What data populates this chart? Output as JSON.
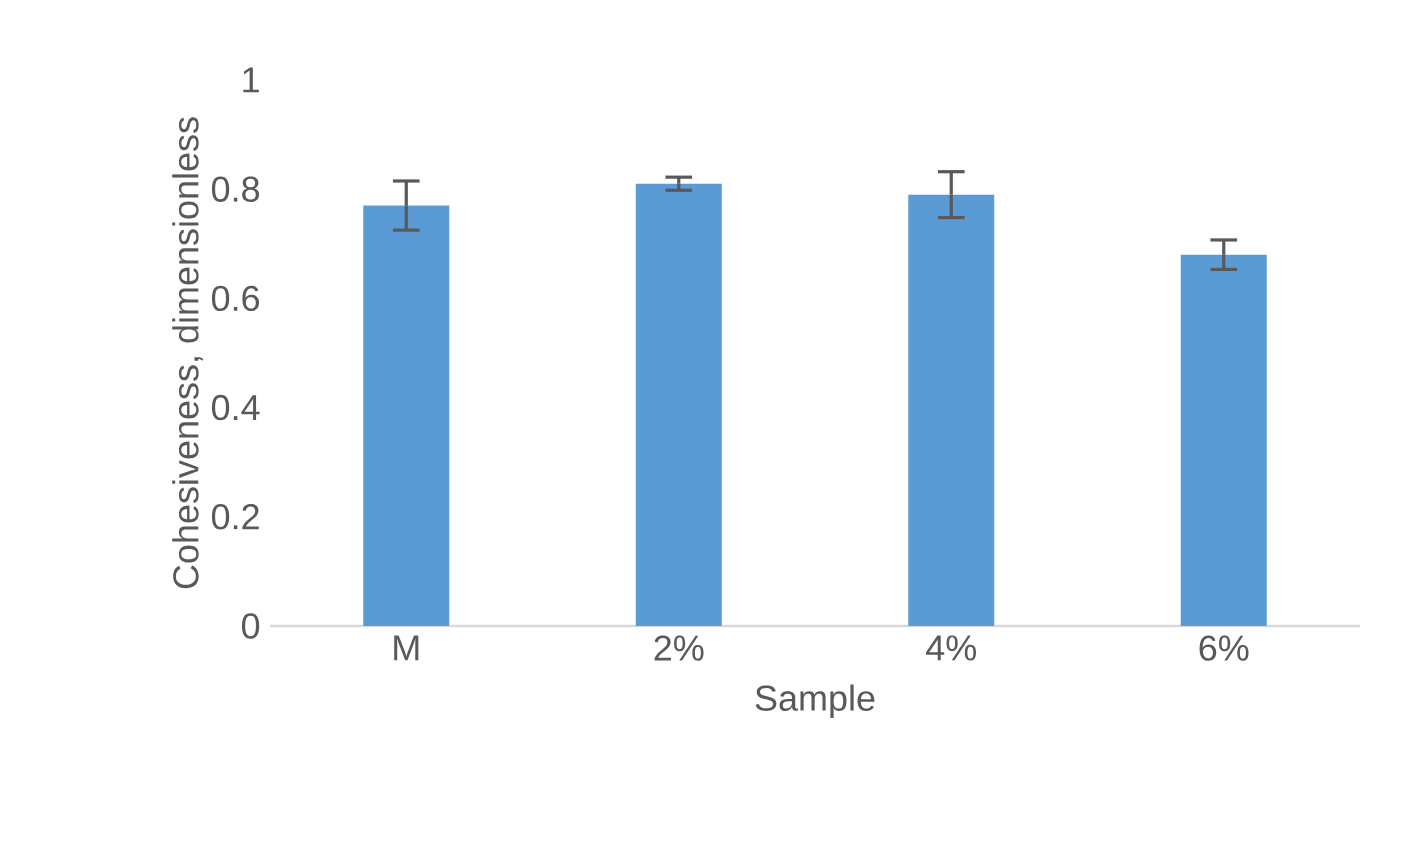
{
  "chart_data": {
    "type": "bar",
    "xlabel": "Sample",
    "ylabel": "Cohesiveness, dimensionless",
    "categories": [
      "M",
      "2%",
      "4%",
      "6%"
    ],
    "values": [
      0.77,
      0.81,
      0.79,
      0.68
    ],
    "errors": [
      0.045,
      0.012,
      0.042,
      0.027
    ],
    "color": "#5b9bd5",
    "ylim": [
      0,
      1
    ],
    "yticks": [
      0,
      0.2,
      0.4,
      0.6,
      0.8,
      1
    ]
  }
}
